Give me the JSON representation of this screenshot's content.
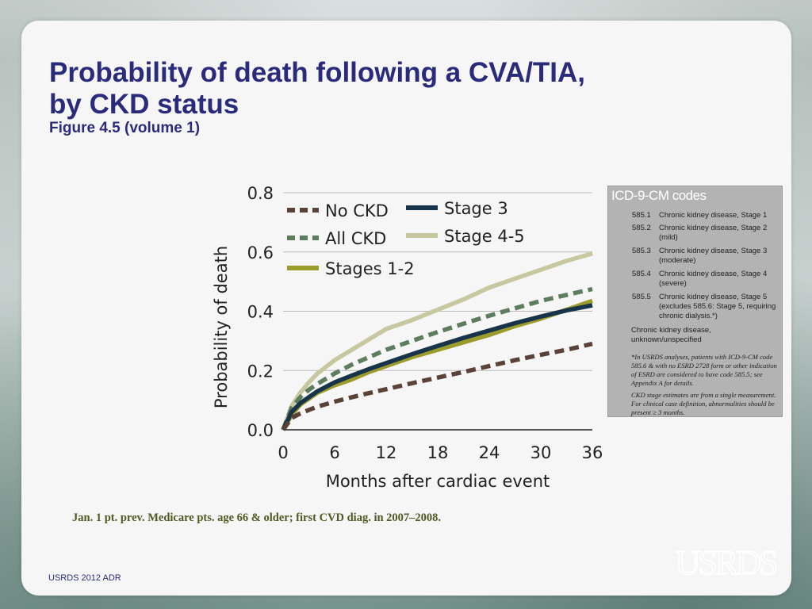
{
  "slide": {
    "title": "Probability of death following a CVA/TIA, by CKD status",
    "subtitle": "Figure 4.5 (volume 1)",
    "footnote": "Jan. 1 pt. prev. Medicare pts. age 66 & older;  first CVD diag. in 2007–2008.",
    "footer": "USRDS 2012 ADR",
    "logo_text": "USRDS"
  },
  "icd_box": {
    "title": "ICD-9-CM codes",
    "codes": [
      {
        "code": "585.1",
        "desc": "Chronic kidney disease, Stage 1"
      },
      {
        "code": "585.2",
        "desc": "Chronic kidney disease, Stage 2 (mild)"
      },
      {
        "code": "585.3",
        "desc": "Chronic kidney disease, Stage 3 (moderate)"
      },
      {
        "code": "585.4",
        "desc": "Chronic kidney disease, Stage 4 (severe)"
      },
      {
        "code": "585.5",
        "desc": "Chronic kidney disease, Stage 5 (excludes 585.6: Stage 5, requiring chronic dialysis.*)"
      }
    ],
    "unknown": "Chronic kidney disease, unknown/unspecified",
    "note1": "*In USRDS analyses, patients with ICD-9-CM code 585.6 & with no ESRD 2728 form or other indication of ESRD are considered to have code 585.5; see Appendix A for details.",
    "note2": "CKD stage estimates are from a single measurement. For clinical case definition, abnormalities should be present ≥ 3 months."
  },
  "chart_data": {
    "type": "line",
    "xlabel": "Months after cardiac event",
    "ylabel": "Probability of death",
    "xlim": [
      0,
      36
    ],
    "ylim": [
      0,
      0.8
    ],
    "x_ticks": [
      "0",
      "6",
      "12",
      "18",
      "24",
      "30",
      "36"
    ],
    "y_ticks": [
      "0.0",
      "0.2",
      "0.4",
      "0.6",
      "0.8"
    ],
    "grid": "horizontal",
    "legend_position": "top-left",
    "x": [
      0,
      1,
      2,
      3,
      4,
      6,
      8,
      10,
      12,
      15,
      18,
      21,
      24,
      27,
      30,
      33,
      36
    ],
    "series": [
      {
        "name": "No CKD",
        "color": "#5a4238",
        "dash": "dash",
        "values": [
          0.0,
          0.04,
          0.055,
          0.067,
          0.078,
          0.095,
          0.11,
          0.124,
          0.137,
          0.157,
          0.176,
          0.195,
          0.215,
          0.235,
          0.253,
          0.27,
          0.29
        ]
      },
      {
        "name": "Stage 3",
        "color": "#17344a",
        "dash": "solid",
        "values": [
          0.0,
          0.06,
          0.09,
          0.11,
          0.13,
          0.16,
          0.183,
          0.205,
          0.225,
          0.255,
          0.283,
          0.31,
          0.335,
          0.36,
          0.382,
          0.403,
          0.42
        ]
      },
      {
        "name": "All CKD",
        "color": "#5e7d5e",
        "dash": "dash",
        "values": [
          0.0,
          0.075,
          0.11,
          0.135,
          0.155,
          0.19,
          0.22,
          0.245,
          0.27,
          0.3,
          0.33,
          0.358,
          0.385,
          0.41,
          0.435,
          0.455,
          0.475
        ]
      },
      {
        "name": "Stage 4-5",
        "color": "#c8c8a0",
        "dash": "solid",
        "values": [
          0.0,
          0.08,
          0.125,
          0.16,
          0.19,
          0.235,
          0.27,
          0.305,
          0.34,
          0.37,
          0.405,
          0.44,
          0.48,
          0.51,
          0.54,
          0.57,
          0.595
        ]
      },
      {
        "name": "Stages 1-2",
        "color": "#9c9c2c",
        "dash": "solid",
        "values": [
          0.0,
          0.05,
          0.085,
          0.105,
          0.125,
          0.15,
          0.17,
          0.195,
          0.215,
          0.245,
          0.27,
          0.295,
          0.32,
          0.35,
          0.375,
          0.405,
          0.435
        ]
      }
    ]
  }
}
